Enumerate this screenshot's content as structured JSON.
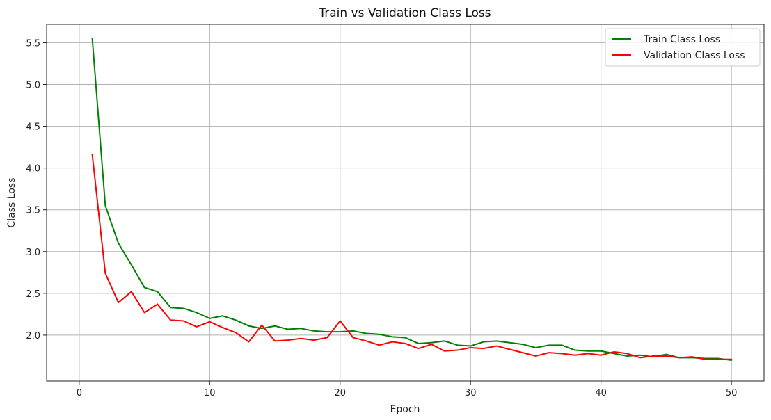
{
  "chart_data": {
    "type": "line",
    "title": "Train vs Validation Class Loss",
    "xlabel": "Epoch",
    "ylabel": "Class Loss",
    "xlim": [
      -2.5,
      52.5
    ],
    "ylim": [
      1.45,
      5.72
    ],
    "xticks": [
      0,
      10,
      20,
      30,
      40,
      50
    ],
    "yticks": [
      2.0,
      2.5,
      3.0,
      3.5,
      4.0,
      4.5,
      5.0,
      5.5
    ],
    "grid": true,
    "legend_position": "top-right",
    "x": [
      1,
      2,
      3,
      4,
      5,
      6,
      7,
      8,
      9,
      10,
      11,
      12,
      13,
      14,
      15,
      16,
      17,
      18,
      19,
      20,
      21,
      22,
      23,
      24,
      25,
      26,
      27,
      28,
      29,
      30,
      31,
      32,
      33,
      34,
      35,
      36,
      37,
      38,
      39,
      40,
      41,
      42,
      43,
      44,
      45,
      46,
      47,
      48,
      49,
      50
    ],
    "series": [
      {
        "name": "Train Class Loss",
        "color": "#008000",
        "values": [
          5.55,
          3.55,
          3.1,
          2.84,
          2.57,
          2.52,
          2.33,
          2.32,
          2.27,
          2.2,
          2.23,
          2.18,
          2.11,
          2.08,
          2.11,
          2.07,
          2.08,
          2.05,
          2.04,
          2.04,
          2.05,
          2.02,
          2.01,
          1.98,
          1.97,
          1.9,
          1.91,
          1.93,
          1.88,
          1.87,
          1.92,
          1.93,
          1.91,
          1.89,
          1.85,
          1.88,
          1.88,
          1.82,
          1.81,
          1.81,
          1.78,
          1.75,
          1.76,
          1.74,
          1.77,
          1.73,
          1.73,
          1.72,
          1.72,
          1.7
        ]
      },
      {
        "name": "Validation Class Loss",
        "color": "#ff0000",
        "values": [
          4.16,
          2.74,
          2.39,
          2.52,
          2.27,
          2.37,
          2.18,
          2.17,
          2.1,
          2.16,
          2.09,
          2.03,
          1.92,
          2.12,
          1.93,
          1.94,
          1.96,
          1.94,
          1.97,
          2.17,
          1.97,
          1.93,
          1.88,
          1.92,
          1.9,
          1.84,
          1.89,
          1.81,
          1.82,
          1.85,
          1.84,
          1.87,
          1.83,
          1.79,
          1.75,
          1.79,
          1.78,
          1.76,
          1.78,
          1.76,
          1.8,
          1.78,
          1.73,
          1.75,
          1.75,
          1.73,
          1.74,
          1.71,
          1.71,
          1.71
        ]
      }
    ]
  }
}
